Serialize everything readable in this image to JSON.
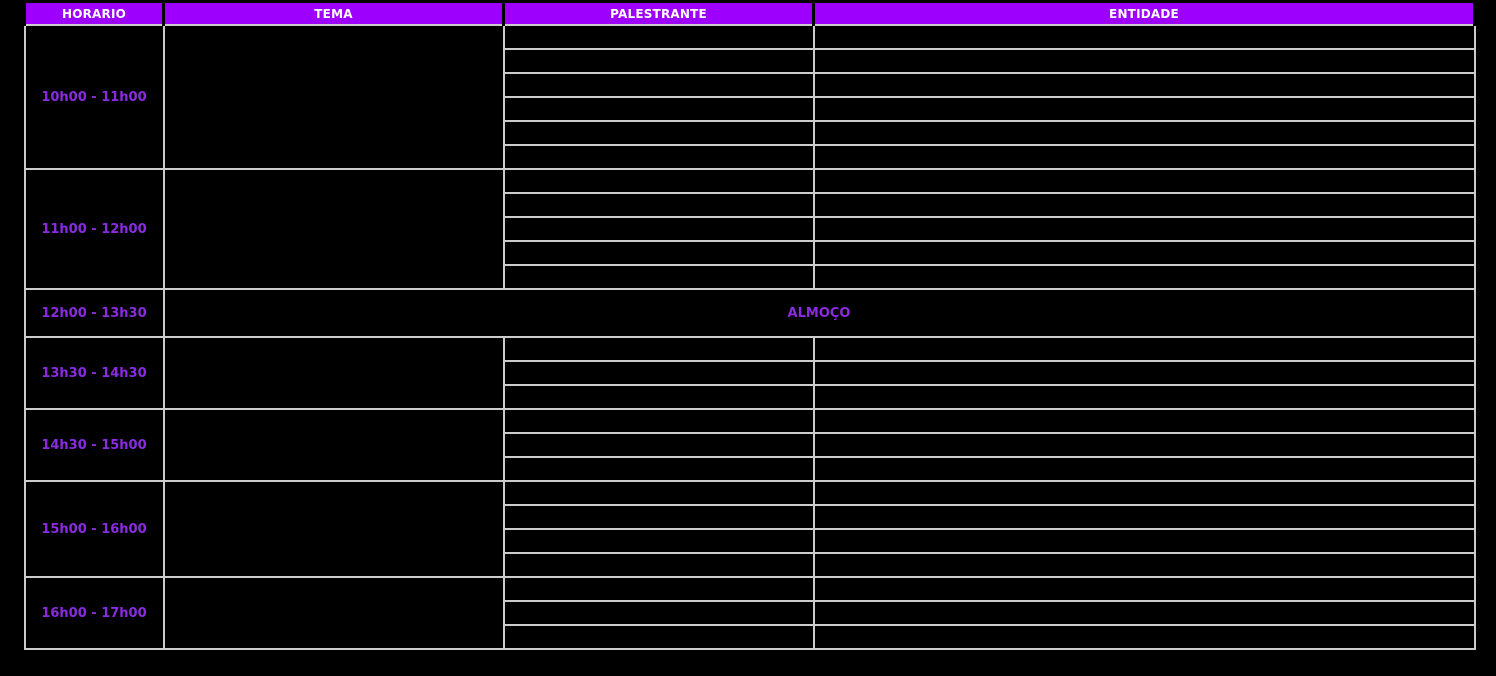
{
  "page": {
    "background_color": "#000000"
  },
  "table": {
    "columns": [
      {
        "key": "horario",
        "label": "HORARIO"
      },
      {
        "key": "tema",
        "label": "TEMA"
      },
      {
        "key": "palestrante",
        "label": "PALESTRANTE"
      },
      {
        "key": "entidade",
        "label": "ENTIDADE"
      }
    ],
    "time_slots": [
      {
        "time": "10h00 - 11h00",
        "subrows": 6,
        "tema": "",
        "palestrante": [
          "",
          "",
          "",
          "",
          "",
          ""
        ],
        "entidade": [
          "",
          "",
          "",
          "",
          "",
          ""
        ]
      },
      {
        "time": "11h00 - 12h00",
        "subrows": 5,
        "tema": "",
        "palestrante": [
          "",
          "",
          "",
          "",
          ""
        ],
        "entidade": [
          "",
          "",
          "",
          "",
          ""
        ]
      },
      {
        "time": "12h00 - 13h30",
        "merged_label": "ALMOÇO"
      },
      {
        "time": "13h30 - 14h30",
        "subrows": 3,
        "tema": "",
        "palestrante": [
          "",
          "",
          ""
        ],
        "entidade": [
          "",
          "",
          ""
        ]
      },
      {
        "time": "14h30 - 15h00",
        "subrows": 3,
        "tema": "",
        "palestrante": [
          "",
          "",
          ""
        ],
        "entidade": [
          "",
          "",
          ""
        ]
      },
      {
        "time": "15h00 - 16h00",
        "subrows": 4,
        "tema": "",
        "palestrante": [
          "",
          "",
          "",
          ""
        ],
        "entidade": [
          "",
          "",
          "",
          ""
        ]
      },
      {
        "time": "16h00 - 17h00",
        "subrows": 3,
        "tema": "",
        "palestrante": [
          "",
          "",
          ""
        ],
        "entidade": [
          "",
          "",
          ""
        ]
      }
    ],
    "colors": {
      "header_background": "#9D00FC",
      "header_text": "#FFFFFF",
      "time_text": "#8A2BE2",
      "gridline": "#CCCCCC",
      "cell_background": "#000000"
    }
  }
}
